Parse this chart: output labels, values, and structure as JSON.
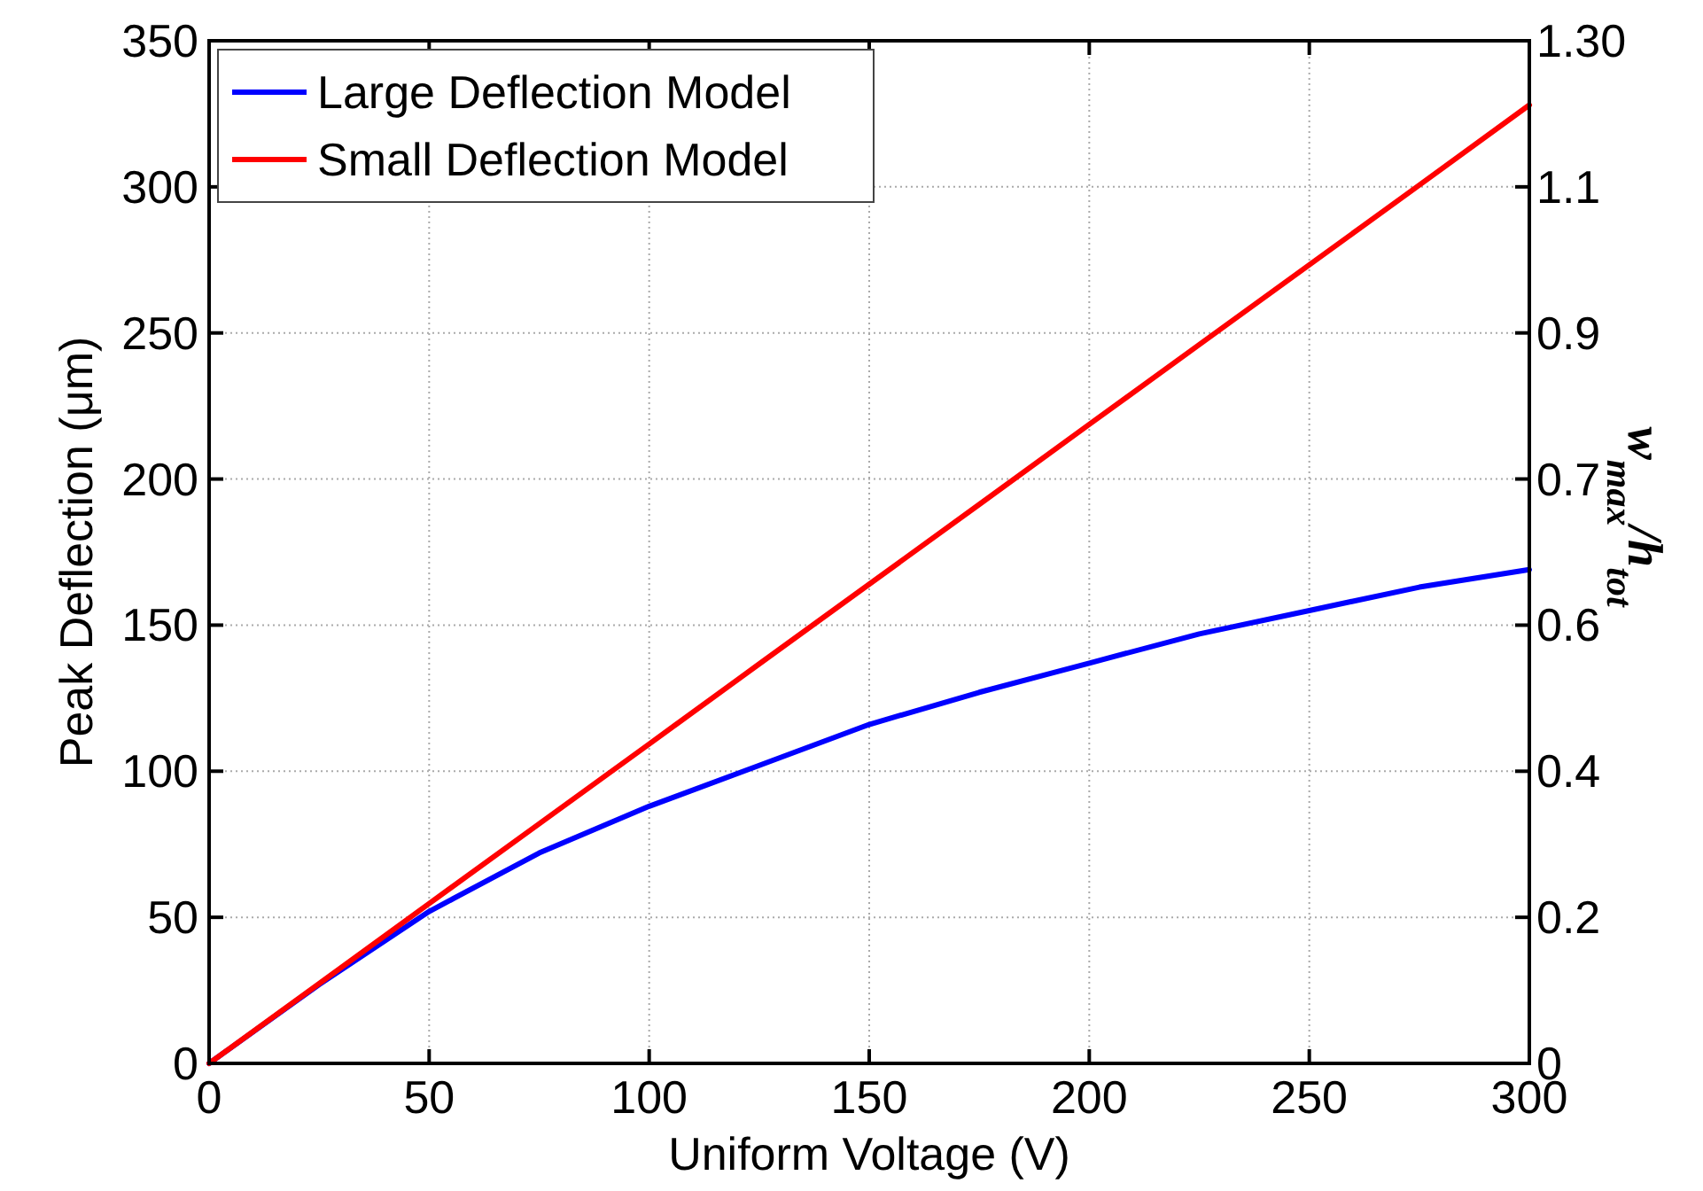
{
  "chart_data": {
    "type": "line",
    "xlabel": "Uniform Voltage (V)",
    "ylabel": "Peak Deflection (μm)",
    "y2label": "w$_{max}$/h$_{tot}$",
    "x": [
      0,
      25,
      50,
      75,
      100,
      125,
      150,
      175,
      200,
      225,
      250,
      275,
      300
    ],
    "series": [
      {
        "name": "Large Deflection Model",
        "color": "#0000ff",
        "values": [
          0,
          27,
          52,
          72,
          88,
          102,
          116,
          127,
          137,
          147,
          155,
          163,
          169
        ]
      },
      {
        "name": "Small Deflection Model",
        "color": "#ff0000",
        "values": [
          0,
          27.3,
          54.7,
          82,
          109.3,
          136.7,
          164,
          191.3,
          218.7,
          246,
          273.3,
          300.6,
          328
        ]
      }
    ],
    "xlim": [
      0,
      300
    ],
    "xticks": [
      0,
      50,
      100,
      150,
      200,
      250,
      300
    ],
    "ylim": [
      0,
      350
    ],
    "yticks": [
      0,
      50,
      100,
      150,
      200,
      250,
      300,
      350
    ],
    "y2lim": [
      0,
      1.3
    ],
    "y2ticks": [
      {
        "value": 0,
        "label": "0"
      },
      {
        "value": 0.1857,
        "label": "0.2"
      },
      {
        "value": 0.3714,
        "label": "0.4"
      },
      {
        "value": 0.5571,
        "label": "0.6"
      },
      {
        "value": 0.7429,
        "label": "0.7"
      },
      {
        "value": 0.9286,
        "label": "0.9"
      },
      {
        "value": 1.1143,
        "label": "1.1"
      },
      {
        "value": 1.3,
        "label": "1.30"
      }
    ],
    "grid": true,
    "legend": "top left",
    "marker": "none",
    "line_style": "solid"
  }
}
